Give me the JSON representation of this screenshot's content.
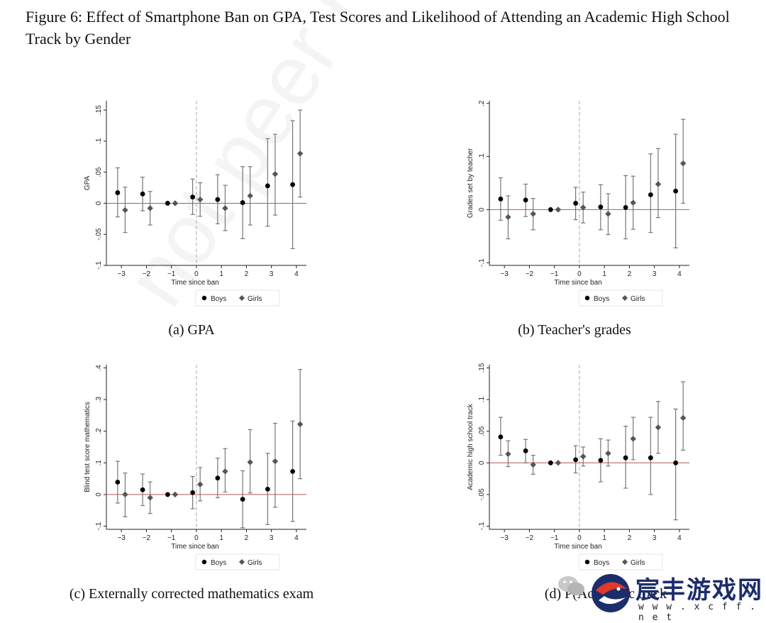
{
  "figure": {
    "title": "Figure 6: Effect of Smartphone Ban on GPA, Test Scores and Likelihood of Attending an Academic High School Track by Gender",
    "watermark": "not peer review",
    "logo": {
      "name": "宸丰游戏网",
      "url": "w w w . x c f f . n e t",
      "icon": "fish-logo-icon"
    },
    "wechat_icon": "wechat-icon"
  },
  "colors": {
    "boys": "#000000",
    "girls": "#555555",
    "zero_line": "#b35a52",
    "ban_line": "#aaaaaa",
    "ci": "#777777"
  },
  "chart_data": [
    {
      "type": "scatter",
      "caption": "(a) GPA",
      "xlabel": "Time since ban",
      "ylabel": "GPA",
      "xticks": [
        -3,
        -2,
        -1,
        0,
        1,
        2,
        3,
        4
      ],
      "yticks": [
        -0.1,
        -0.05,
        0,
        0.05,
        0.1,
        0.15
      ],
      "ytick_labels": [
        "-.1",
        "-.05",
        "0",
        ".05",
        ".1",
        ".15"
      ],
      "ylim": [
        -0.1,
        0.165
      ],
      "xlim": [
        -3.6,
        4.4
      ],
      "legend": [
        "Boys",
        "Girls"
      ],
      "legend_position": "bottom",
      "series": [
        {
          "name": "Boys",
          "marker": "circle",
          "x": [
            -3.15,
            -2.15,
            -1.15,
            -0.15,
            0.85,
            1.85,
            2.85,
            3.85
          ],
          "y": [
            0.017,
            0.015,
            0.0,
            0.01,
            0.006,
            0.001,
            0.028,
            0.03
          ],
          "lo": [
            -0.022,
            -0.012,
            0.0,
            -0.018,
            -0.033,
            -0.057,
            -0.037,
            -0.073
          ],
          "hi": [
            0.057,
            0.042,
            0.0,
            0.039,
            0.046,
            0.059,
            0.104,
            0.133
          ]
        },
        {
          "name": "Girls",
          "marker": "diamond",
          "x": [
            -2.85,
            -1.85,
            -0.85,
            0.15,
            1.15,
            2.15,
            3.15,
            4.15
          ],
          "y": [
            -0.011,
            -0.008,
            0.0,
            0.006,
            -0.008,
            0.012,
            0.047,
            0.08
          ],
          "lo": [
            -0.047,
            -0.035,
            0.0,
            -0.021,
            -0.044,
            -0.035,
            -0.019,
            0.01
          ],
          "hi": [
            0.026,
            0.019,
            0.0,
            0.033,
            0.029,
            0.059,
            0.111,
            0.15
          ]
        }
      ]
    },
    {
      "type": "scatter",
      "caption": "(b) Teacher's grades",
      "xlabel": "Time since ban",
      "ylabel": "Grades set by teacher",
      "xticks": [
        -3,
        -2,
        -1,
        0,
        1,
        2,
        3,
        4
      ],
      "yticks": [
        -0.1,
        0,
        0.1,
        0.2
      ],
      "ytick_labels": [
        "-.1",
        "0",
        ".1",
        ".2"
      ],
      "ylim": [
        -0.105,
        0.205
      ],
      "xlim": [
        -3.6,
        4.4
      ],
      "legend": [
        "Boys",
        "Girls"
      ],
      "legend_position": "bottom",
      "series": [
        {
          "name": "Boys",
          "marker": "circle",
          "x": [
            -3.15,
            -2.15,
            -1.15,
            -0.15,
            0.85,
            1.85,
            2.85,
            3.85
          ],
          "y": [
            0.02,
            0.018,
            0.0,
            0.012,
            0.005,
            0.004,
            0.028,
            0.035
          ],
          "lo": [
            -0.02,
            -0.013,
            0.0,
            -0.019,
            -0.038,
            -0.055,
            -0.043,
            -0.072
          ],
          "hi": [
            0.06,
            0.048,
            0.0,
            0.042,
            0.047,
            0.064,
            0.105,
            0.142
          ]
        },
        {
          "name": "Girls",
          "marker": "diamond",
          "x": [
            -2.85,
            -1.85,
            -0.85,
            0.15,
            1.15,
            2.15,
            3.15,
            4.15
          ],
          "y": [
            -0.014,
            -0.008,
            0.0,
            0.004,
            -0.008,
            0.013,
            0.048,
            0.087
          ],
          "lo": [
            -0.055,
            -0.038,
            0.0,
            -0.025,
            -0.047,
            -0.037,
            -0.015,
            0.012
          ],
          "hi": [
            0.026,
            0.021,
            0.0,
            0.033,
            0.03,
            0.063,
            0.115,
            0.17
          ]
        }
      ]
    },
    {
      "type": "scatter",
      "caption": "(c) Externally corrected mathematics exam",
      "xlabel": "Time since ban",
      "ylabel": "Blind test score mathematics",
      "xticks": [
        -3,
        -2,
        -1,
        0,
        1,
        2,
        3,
        4
      ],
      "yticks": [
        -0.1,
        0,
        0.1,
        0.2,
        0.3,
        0.4
      ],
      "ytick_labels": [
        "-.1",
        "0",
        ".1",
        ".2",
        ".3",
        ".4"
      ],
      "ylim": [
        -0.11,
        0.41
      ],
      "xlim": [
        -3.6,
        4.4
      ],
      "legend": [
        "Boys",
        "Girls"
      ],
      "legend_position": "bottom",
      "series": [
        {
          "name": "Boys",
          "marker": "circle",
          "x": [
            -3.15,
            -2.15,
            -1.15,
            -0.15,
            0.85,
            1.85,
            2.85,
            3.85
          ],
          "y": [
            0.039,
            0.015,
            0.0,
            0.006,
            0.052,
            -0.015,
            0.017,
            0.073
          ],
          "lo": [
            -0.027,
            -0.035,
            0.0,
            -0.045,
            -0.01,
            -0.105,
            -0.095,
            -0.085
          ],
          "hi": [
            0.105,
            0.065,
            0.0,
            0.057,
            0.115,
            0.075,
            0.13,
            0.232
          ]
        },
        {
          "name": "Girls",
          "marker": "diamond",
          "x": [
            -2.85,
            -1.85,
            -0.85,
            0.15,
            1.15,
            2.15,
            3.15,
            4.15
          ],
          "y": [
            0.0,
            -0.01,
            0.0,
            0.032,
            0.073,
            0.102,
            0.105,
            0.222
          ],
          "lo": [
            -0.07,
            -0.06,
            0.0,
            -0.02,
            0.008,
            0.005,
            -0.04,
            0.05
          ],
          "hi": [
            0.068,
            0.04,
            0.0,
            0.085,
            0.145,
            0.205,
            0.225,
            0.395
          ]
        }
      ]
    },
    {
      "type": "scatter",
      "caption": "(d) P(Academic track",
      "xlabel": "Time since ban",
      "ylabel": "Academic high school track",
      "xticks": [
        -3,
        -2,
        -1,
        0,
        1,
        2,
        3,
        4
      ],
      "yticks": [
        -0.1,
        -0.05,
        0,
        0.05,
        0.1,
        0.15
      ],
      "ytick_labels": [
        "-.1",
        "-.05",
        "0",
        ".05",
        ".1",
        ".15"
      ],
      "ylim": [
        -0.105,
        0.155
      ],
      "xlim": [
        -3.6,
        4.4
      ],
      "legend": [
        "Boys",
        "Girls"
      ],
      "legend_position": "bottom",
      "series": [
        {
          "name": "Boys",
          "marker": "circle",
          "x": [
            -3.15,
            -2.15,
            -1.15,
            -0.15,
            0.85,
            1.85,
            2.85,
            3.85
          ],
          "y": [
            0.041,
            0.019,
            0.0,
            0.005,
            0.004,
            0.008,
            0.008,
            0.0
          ],
          "lo": [
            0.012,
            0.0,
            0.0,
            -0.016,
            -0.03,
            -0.04,
            -0.05,
            -0.09
          ],
          "hi": [
            0.072,
            0.037,
            0.0,
            0.027,
            0.038,
            0.058,
            0.072,
            0.085
          ]
        },
        {
          "name": "Girls",
          "marker": "diamond",
          "x": [
            -2.85,
            -1.85,
            -0.85,
            0.15,
            1.15,
            2.15,
            3.15,
            4.15
          ],
          "y": [
            0.014,
            -0.003,
            0.0,
            0.01,
            0.015,
            0.038,
            0.056,
            0.071
          ],
          "lo": [
            -0.006,
            -0.018,
            0.0,
            -0.005,
            -0.005,
            0.005,
            0.015,
            0.02
          ],
          "hi": [
            0.035,
            0.012,
            0.0,
            0.025,
            0.036,
            0.072,
            0.097,
            0.128
          ]
        }
      ]
    }
  ]
}
